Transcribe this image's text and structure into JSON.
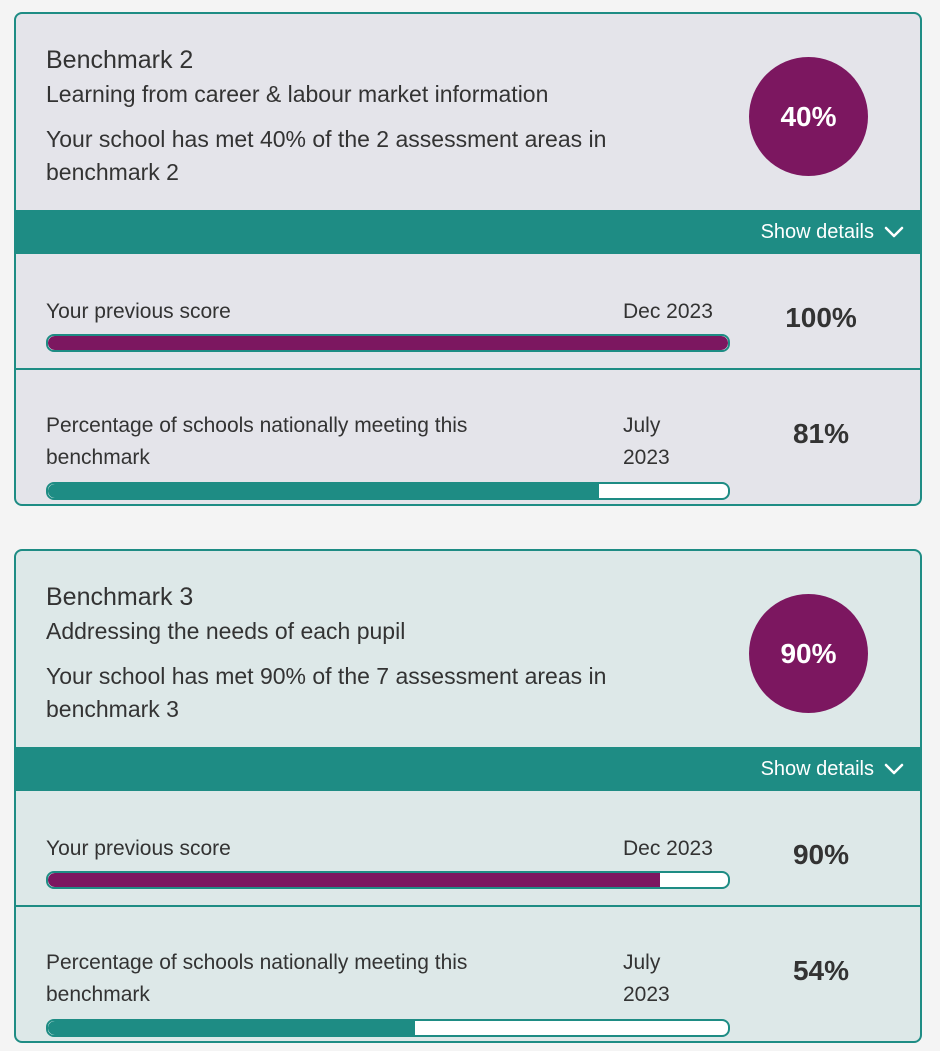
{
  "colors": {
    "accent_teal": "#1e8c84",
    "score_purple": "#7c1760"
  },
  "benchmarks": [
    {
      "title": "Benchmark 2",
      "subtitle": "Learning from career & labour market information",
      "description": "Your school has met 40% of the 2 assessment areas in benchmark 2",
      "score_label": "40%",
      "show_details_label": "Show details",
      "chevron_icon": "chevron-down-icon",
      "previous": {
        "label": "Your previous score",
        "date": "Dec 2023",
        "value_label": "100%",
        "progress": 1.0
      },
      "national": {
        "label": "Percentage of schools nationally meeting this benchmark",
        "date": "July 2023",
        "value_label": "81%",
        "progress": 0.81
      }
    },
    {
      "title": "Benchmark 3",
      "subtitle": "Addressing the needs of each pupil",
      "description": "Your school has met 90% of the 7 assessment areas in benchmark 3",
      "score_label": "90%",
      "show_details_label": "Show details",
      "chevron_icon": "chevron-down-icon",
      "previous": {
        "label": "Your previous score",
        "date": "Dec 2023",
        "value_label": "90%",
        "progress": 0.9
      },
      "national": {
        "label": "Percentage of schools nationally meeting this benchmark",
        "date": "July 2023",
        "value_label": "54%",
        "progress": 0.54
      }
    }
  ]
}
